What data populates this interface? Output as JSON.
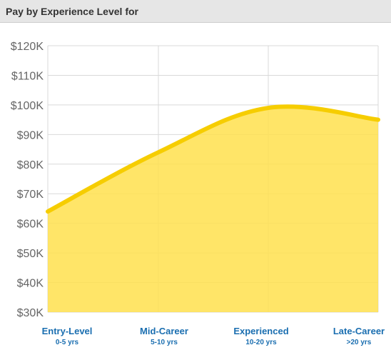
{
  "header": {
    "title": "Pay by Experience Level for"
  },
  "colors": {
    "fill": "#ffe04d",
    "line": "#f6cd00",
    "grid": "#d9d9d9",
    "tick_text": "#666666",
    "category_text": "#1a6eb0",
    "header_bg": "#e6e6e6"
  },
  "chart_data": {
    "type": "area",
    "y_ticks": [
      "$30K",
      "$40K",
      "$50K",
      "$60K",
      "$70K",
      "$80K",
      "$90K",
      "$100K",
      "$110K",
      "$120K"
    ],
    "ylim": [
      30000,
      120000
    ],
    "grid": true,
    "categories": [
      {
        "label": "Entry-Level",
        "sub": "0-5 yrs"
      },
      {
        "label": "Mid-Career",
        "sub": "5-10 yrs"
      },
      {
        "label": "Experienced",
        "sub": "10-20 yrs"
      },
      {
        "label": "Late-Career",
        "sub": ">20 yrs"
      }
    ],
    "values": [
      64000,
      84000,
      99000,
      95000
    ]
  }
}
